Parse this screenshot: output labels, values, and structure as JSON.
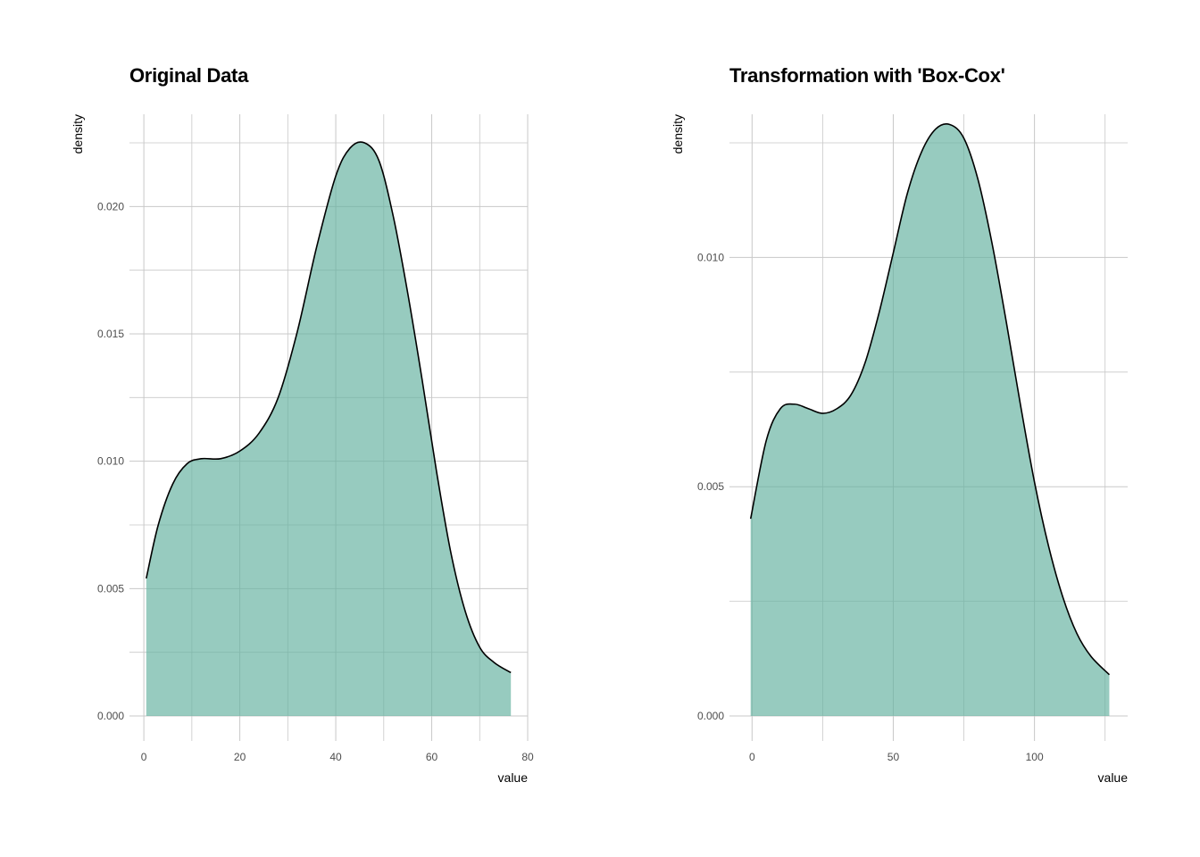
{
  "chart_data": [
    {
      "type": "area",
      "title": "Original Data",
      "xlabel": "value",
      "ylabel": "density",
      "xlim": [
        -3,
        80
      ],
      "ylim": [
        0,
        0.0225
      ],
      "x_ticks": [
        0,
        20,
        40,
        60,
        80
      ],
      "x_tick_labels": [
        "0",
        "20",
        "40",
        "60",
        "80"
      ],
      "y_ticks": [
        0,
        0.005,
        0.01,
        0.015,
        0.02
      ],
      "y_tick_labels": [
        "0.000",
        "0.005",
        "0.010",
        "0.015",
        "0.020"
      ],
      "fill_color": "#66b2a0",
      "line_color": "#000000",
      "x": [
        0.5,
        3,
        6,
        9,
        12,
        16,
        20,
        24,
        28,
        32,
        36,
        40,
        43,
        46,
        49,
        52,
        55,
        58,
        61,
        64,
        67,
        70,
        73,
        76.5
      ],
      "y": [
        0.0054,
        0.0075,
        0.0091,
        0.0099,
        0.0101,
        0.0101,
        0.0104,
        0.0111,
        0.0125,
        0.0151,
        0.0184,
        0.0212,
        0.0223,
        0.0225,
        0.0218,
        0.0196,
        0.0166,
        0.0132,
        0.0096,
        0.0064,
        0.0041,
        0.0027,
        0.0021,
        0.0017
      ]
    },
    {
      "type": "area",
      "title": "Transformation with 'Box-Cox'",
      "xlabel": "value",
      "ylabel": "density",
      "xlim": [
        -8,
        133
      ],
      "ylim": [
        0,
        0.0125
      ],
      "x_ticks": [
        0,
        50,
        100
      ],
      "x_tick_labels": [
        "0",
        "50",
        "100"
      ],
      "y_ticks": [
        0,
        0.005,
        0.01
      ],
      "y_tick_labels": [
        "0.000",
        "0.005",
        "0.010"
      ],
      "fill_color": "#66b2a0",
      "line_color": "#000000",
      "x": [
        -0.5,
        5,
        10,
        15,
        20,
        25,
        30,
        35,
        40,
        45,
        50,
        55,
        60,
        65,
        70,
        75,
        80,
        85,
        90,
        95,
        100,
        105,
        110,
        115,
        120,
        126.5
      ],
      "y": [
        0.0043,
        0.006,
        0.0067,
        0.0068,
        0.0067,
        0.0066,
        0.0067,
        0.007,
        0.0077,
        0.0088,
        0.0101,
        0.0114,
        0.0123,
        0.0128,
        0.0129,
        0.0126,
        0.0117,
        0.0103,
        0.0086,
        0.0068,
        0.0051,
        0.0037,
        0.0026,
        0.0018,
        0.0013,
        0.0009
      ]
    }
  ]
}
